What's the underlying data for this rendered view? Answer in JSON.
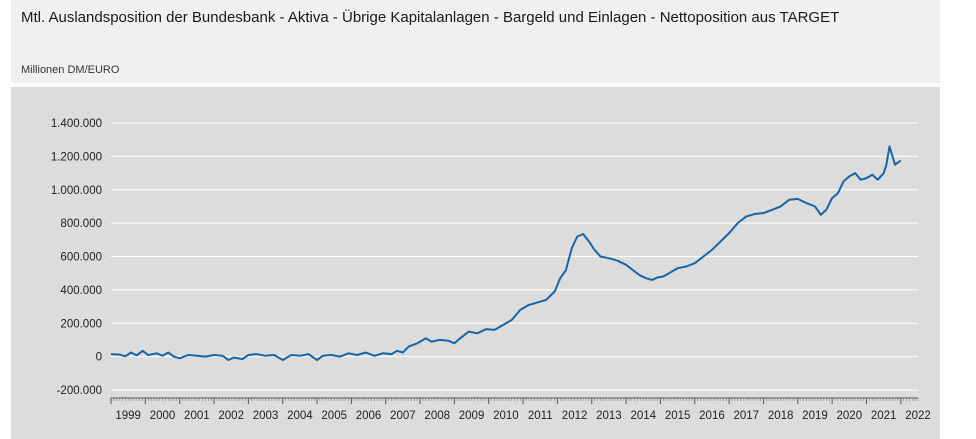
{
  "header": {
    "title": "Mtl. Auslandsposition der Bundesbank - Aktiva - Übrige Kapitalanlagen - Bargeld und Einlagen - Nettoposition aus TARGET",
    "unit": "Millionen DM/EURO"
  },
  "colors": {
    "line": "#1565a8",
    "grid": "#ffffff",
    "plot_background": "#dcdcdc",
    "header_background": "#f0f0f0"
  },
  "chart_data": {
    "type": "line",
    "title": "Mtl. Auslandsposition der Bundesbank - Aktiva - Übrige Kapitalanlagen - Bargeld und Einlagen - Nettoposition aus TARGET",
    "ylabel": "Millionen DM/EURO",
    "xlabel": "",
    "ylim": [
      -200000,
      1400000
    ],
    "xlim": [
      1999.0,
      2022.5
    ],
    "grid": true,
    "legend": "none",
    "y_ticks": [
      {
        "value": 1400000,
        "label": "1.400.000"
      },
      {
        "value": 1200000,
        "label": "1.200.000"
      },
      {
        "value": 1000000,
        "label": "1.000.000"
      },
      {
        "value": 800000,
        "label": "800.000"
      },
      {
        "value": 600000,
        "label": "600.000"
      },
      {
        "value": 400000,
        "label": "400.000"
      },
      {
        "value": 200000,
        "label": "200.000"
      },
      {
        "value": 0,
        "label": "0"
      },
      {
        "value": -200000,
        "label": "-200.000"
      }
    ],
    "x_ticks": [
      "1999",
      "2000",
      "2001",
      "2002",
      "2003",
      "2004",
      "2005",
      "2006",
      "2007",
      "2008",
      "2009",
      "2010",
      "2011",
      "2012",
      "2013",
      "2014",
      "2015",
      "2016",
      "2017",
      "2018",
      "2019",
      "2020",
      "2021",
      "2022"
    ],
    "series": [
      {
        "points": [
          [
            1999.0,
            15000
          ],
          [
            1999.25,
            12000
          ],
          [
            1999.42,
            2000
          ],
          [
            1999.58,
            25000
          ],
          [
            1999.75,
            8000
          ],
          [
            1999.92,
            35000
          ],
          [
            2000.08,
            10000
          ],
          [
            2000.33,
            20000
          ],
          [
            2000.5,
            5000
          ],
          [
            2000.67,
            25000
          ],
          [
            2000.83,
            0
          ],
          [
            2001.0,
            -10000
          ],
          [
            2001.25,
            10000
          ],
          [
            2001.5,
            5000
          ],
          [
            2001.75,
            0
          ],
          [
            2002.0,
            10000
          ],
          [
            2002.25,
            5000
          ],
          [
            2002.42,
            -20000
          ],
          [
            2002.58,
            -5000
          ],
          [
            2002.83,
            -15000
          ],
          [
            2003.0,
            10000
          ],
          [
            2003.25,
            15000
          ],
          [
            2003.5,
            5000
          ],
          [
            2003.75,
            10000
          ],
          [
            2004.0,
            -20000
          ],
          [
            2004.25,
            10000
          ],
          [
            2004.5,
            5000
          ],
          [
            2004.75,
            15000
          ],
          [
            2005.0,
            -20000
          ],
          [
            2005.17,
            5000
          ],
          [
            2005.42,
            10000
          ],
          [
            2005.67,
            0
          ],
          [
            2005.92,
            20000
          ],
          [
            2006.17,
            10000
          ],
          [
            2006.42,
            25000
          ],
          [
            2006.67,
            5000
          ],
          [
            2006.92,
            20000
          ],
          [
            2007.17,
            15000
          ],
          [
            2007.33,
            35000
          ],
          [
            2007.5,
            25000
          ],
          [
            2007.67,
            60000
          ],
          [
            2007.92,
            80000
          ],
          [
            2008.17,
            110000
          ],
          [
            2008.33,
            90000
          ],
          [
            2008.58,
            100000
          ],
          [
            2008.83,
            95000
          ],
          [
            2009.0,
            80000
          ],
          [
            2009.17,
            110000
          ],
          [
            2009.42,
            150000
          ],
          [
            2009.67,
            140000
          ],
          [
            2009.92,
            165000
          ],
          [
            2010.17,
            160000
          ],
          [
            2010.42,
            190000
          ],
          [
            2010.67,
            220000
          ],
          [
            2010.92,
            280000
          ],
          [
            2011.17,
            310000
          ],
          [
            2011.42,
            325000
          ],
          [
            2011.67,
            340000
          ],
          [
            2011.92,
            390000
          ],
          [
            2012.08,
            470000
          ],
          [
            2012.25,
            520000
          ],
          [
            2012.42,
            650000
          ],
          [
            2012.58,
            720000
          ],
          [
            2012.75,
            735000
          ],
          [
            2012.92,
            690000
          ],
          [
            2013.08,
            640000
          ],
          [
            2013.25,
            600000
          ],
          [
            2013.5,
            590000
          ],
          [
            2013.75,
            575000
          ],
          [
            2014.0,
            550000
          ],
          [
            2014.25,
            510000
          ],
          [
            2014.42,
            485000
          ],
          [
            2014.58,
            470000
          ],
          [
            2014.75,
            460000
          ],
          [
            2014.92,
            475000
          ],
          [
            2015.08,
            480000
          ],
          [
            2015.25,
            500000
          ],
          [
            2015.5,
            530000
          ],
          [
            2015.75,
            540000
          ],
          [
            2016.0,
            560000
          ],
          [
            2016.25,
            600000
          ],
          [
            2016.5,
            640000
          ],
          [
            2016.75,
            690000
          ],
          [
            2017.0,
            740000
          ],
          [
            2017.25,
            800000
          ],
          [
            2017.5,
            840000
          ],
          [
            2017.75,
            855000
          ],
          [
            2018.0,
            860000
          ],
          [
            2018.25,
            880000
          ],
          [
            2018.5,
            900000
          ],
          [
            2018.75,
            940000
          ],
          [
            2019.0,
            945000
          ],
          [
            2019.25,
            920000
          ],
          [
            2019.5,
            900000
          ],
          [
            2019.67,
            850000
          ],
          [
            2019.83,
            880000
          ],
          [
            2020.0,
            950000
          ],
          [
            2020.17,
            980000
          ],
          [
            2020.33,
            1050000
          ],
          [
            2020.5,
            1080000
          ],
          [
            2020.67,
            1100000
          ],
          [
            2020.83,
            1060000
          ],
          [
            2021.0,
            1070000
          ],
          [
            2021.17,
            1090000
          ],
          [
            2021.33,
            1060000
          ],
          [
            2021.5,
            1100000
          ],
          [
            2021.58,
            1150000
          ],
          [
            2021.67,
            1260000
          ],
          [
            2021.83,
            1150000
          ],
          [
            2022.0,
            1175000
          ]
        ]
      }
    ]
  }
}
